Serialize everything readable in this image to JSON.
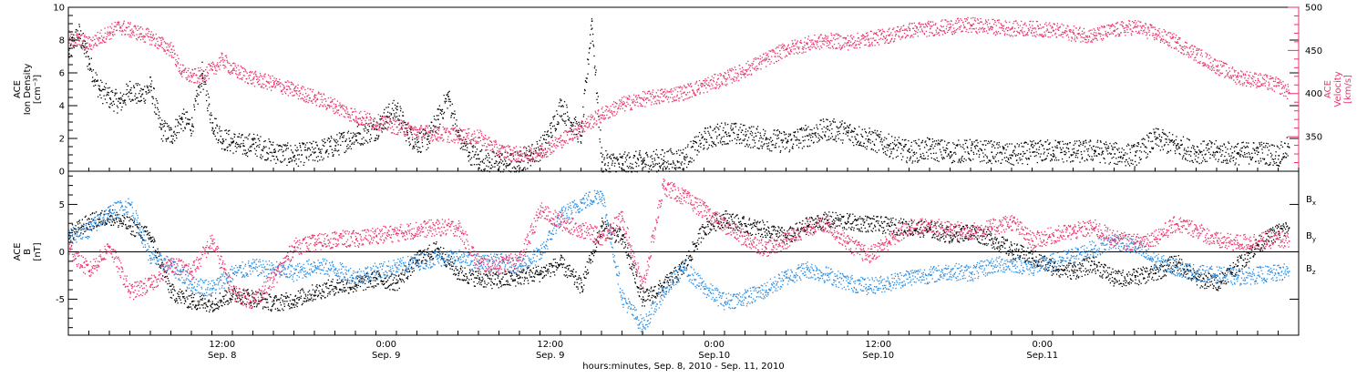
{
  "chart_data": [
    {
      "type": "scatter",
      "panel": "top",
      "left_axis": {
        "label_lines": [
          "ACE",
          "Ion Density",
          "[cm⁻³]"
        ],
        "ylim": [
          0,
          10
        ],
        "ticks": [
          "0",
          "2",
          "4",
          "6",
          "8",
          "10"
        ],
        "color": "#000000"
      },
      "right_axis": {
        "label_lines": [
          "ACE",
          "Velocity",
          "[km/s]"
        ],
        "ylim": [
          310,
          500
        ],
        "ticks": [
          "350",
          "400",
          "450",
          "500"
        ],
        "color": "#e8346a"
      },
      "series": [
        {
          "axis": "left",
          "color": "#000000",
          "x": [
            0,
            0.5,
            1,
            1.5,
            2,
            3,
            4,
            5,
            6,
            7,
            8,
            9,
            10,
            11,
            12,
            13,
            14,
            15,
            16,
            17,
            18,
            20,
            22,
            24,
            26,
            28,
            30,
            31,
            32,
            33,
            34,
            35,
            36,
            37,
            38,
            39,
            40,
            41,
            42,
            43,
            44,
            45,
            46,
            47,
            48,
            49,
            50,
            51,
            52,
            54,
            56,
            58,
            60,
            62,
            64,
            66,
            68,
            70,
            72,
            74,
            76,
            78,
            80,
            82,
            84,
            86,
            88,
            90,
            92,
            94,
            96,
            98,
            100,
            102,
            104,
            106,
            108,
            110,
            112,
            114,
            116,
            118,
            119
          ],
          "y": [
            7.2,
            8.0,
            8.4,
            7.6,
            6.6,
            5.0,
            4.5,
            4.2,
            5.0,
            4.6,
            5.2,
            2.6,
            2.2,
            3.2,
            2.8,
            6.0,
            3.0,
            2.0,
            1.8,
            1.6,
            1.7,
            1.2,
            1.0,
            1.2,
            1.6,
            2.2,
            2.6,
            3.4,
            3.8,
            2.4,
            1.8,
            2.0,
            3.2,
            4.6,
            2.2,
            1.2,
            0.8,
            0.6,
            0.6,
            0.5,
            0.6,
            1.0,
            1.4,
            2.4,
            4.0,
            3.0,
            2.2,
            9.2,
            0.6,
            0.5,
            0.6,
            0.7,
            0.8,
            2.0,
            2.4,
            2.2,
            2.0,
            1.8,
            2.2,
            2.6,
            2.4,
            2.0,
            1.6,
            1.2,
            1.4,
            1.2,
            1.3,
            1.2,
            1.0,
            1.2,
            1.3,
            1.2,
            1.3,
            1.1,
            1.0,
            2.0,
            1.6,
            1.2,
            1.2,
            1.1,
            1.2,
            1.0,
            1.5
          ]
        },
        {
          "axis": "right",
          "color": "#e8346a",
          "x": [
            0,
            1,
            2,
            3,
            4,
            5,
            6,
            7,
            8,
            9,
            10,
            11,
            12,
            13,
            14,
            15,
            16,
            18,
            20,
            22,
            24,
            26,
            28,
            30,
            32,
            34,
            36,
            38,
            40,
            42,
            44,
            46,
            48,
            50,
            52,
            54,
            56,
            58,
            60,
            62,
            64,
            66,
            68,
            70,
            72,
            74,
            76,
            78,
            80,
            82,
            84,
            86,
            88,
            90,
            92,
            94,
            96,
            98,
            100,
            102,
            104,
            106,
            108,
            110,
            112,
            114,
            116,
            118,
            119
          ],
          "y": [
            465,
            462,
            458,
            465,
            472,
            478,
            474,
            470,
            466,
            458,
            452,
            426,
            420,
            422,
            428,
            440,
            428,
            418,
            412,
            404,
            396,
            386,
            374,
            368,
            362,
            356,
            354,
            352,
            350,
            334,
            330,
            332,
            346,
            362,
            376,
            388,
            394,
            398,
            402,
            410,
            418,
            428,
            440,
            452,
            458,
            462,
            460,
            464,
            468,
            474,
            476,
            478,
            480,
            478,
            476,
            476,
            474,
            470,
            468,
            474,
            478,
            470,
            460,
            446,
            432,
            420,
            416,
            410,
            402
          ]
        }
      ]
    },
    {
      "type": "scatter",
      "panel": "bottom",
      "left_axis": {
        "label_lines": [
          "ACE",
          "B",
          "[nT]"
        ],
        "ylim": [
          -8.8,
          8.5
        ],
        "ticks": [
          "-5",
          "0",
          "5"
        ],
        "color": "#000000"
      },
      "legend": [
        {
          "label": "Bx",
          "color": "#000000"
        },
        {
          "label": "By",
          "color": "#2a8ee4"
        },
        {
          "label": "Bz",
          "color": "#e8346a"
        }
      ],
      "series": [
        {
          "name": "Bx",
          "color": "#000000",
          "x": [
            0,
            2,
            4,
            6,
            8,
            10,
            12,
            14,
            16,
            18,
            20,
            22,
            24,
            26,
            28,
            30,
            32,
            34,
            36,
            38,
            40,
            42,
            44,
            46,
            48,
            50,
            52,
            54,
            56,
            58,
            60,
            62,
            64,
            66,
            68,
            70,
            72,
            74,
            76,
            78,
            80,
            82,
            84,
            86,
            88,
            90,
            92,
            94,
            96,
            98,
            100,
            102,
            104,
            106,
            108,
            110,
            112,
            114,
            116,
            118,
            119
          ],
          "y": [
            1.8,
            3.2,
            3.8,
            2.8,
            1.6,
            -4.2,
            -5.2,
            -5.4,
            -4.4,
            -4.8,
            -5.4,
            -5.0,
            -4.2,
            -3.6,
            -3.4,
            -2.8,
            -3.2,
            -0.8,
            0.4,
            -2.2,
            -2.8,
            -3.0,
            -2.6,
            -2.2,
            -1.2,
            -3.6,
            2.8,
            1.4,
            -5.0,
            -3.6,
            -1.6,
            2.6,
            3.6,
            2.8,
            2.4,
            1.6,
            2.8,
            3.4,
            3.2,
            3.0,
            2.8,
            2.6,
            2.4,
            1.8,
            2.2,
            1.4,
            0.2,
            -0.6,
            -1.6,
            -2.0,
            -1.2,
            -2.8,
            -2.6,
            -2.2,
            -1.0,
            -2.8,
            -3.2,
            -1.4,
            0.8,
            2.2,
            2.6
          ]
        },
        {
          "name": "By",
          "color": "#2a8ee4",
          "x": [
            0,
            2,
            4,
            6,
            8,
            10,
            12,
            14,
            16,
            18,
            20,
            22,
            24,
            26,
            28,
            30,
            32,
            34,
            36,
            38,
            40,
            42,
            44,
            46,
            48,
            50,
            52,
            54,
            56,
            58,
            60,
            62,
            64,
            66,
            68,
            70,
            72,
            74,
            76,
            78,
            80,
            82,
            84,
            86,
            88,
            90,
            92,
            94,
            96,
            98,
            100,
            102,
            104,
            106,
            108,
            110,
            112,
            114,
            116,
            118,
            119
          ],
          "y": [
            1.6,
            2.4,
            4.2,
            5.0,
            -0.6,
            -1.4,
            -3.4,
            -3.8,
            -2.2,
            -1.6,
            -1.8,
            -2.2,
            -1.4,
            -1.8,
            -2.6,
            -2.0,
            -1.6,
            -1.0,
            -0.6,
            -0.6,
            -1.2,
            -1.0,
            -1.4,
            -0.2,
            3.8,
            5.2,
            6.2,
            -4.8,
            -7.8,
            -4.2,
            -1.6,
            -3.8,
            -5.2,
            -4.8,
            -4.0,
            -2.6,
            -1.8,
            -2.4,
            -3.2,
            -3.6,
            -3.2,
            -2.6,
            -2.4,
            -2.0,
            -2.2,
            -1.4,
            -1.2,
            -1.6,
            -1.0,
            -0.4,
            0.4,
            1.2,
            0.6,
            -1.0,
            -1.6,
            -2.2,
            -2.4,
            -2.6,
            -2.4,
            -2.2,
            -2.0
          ]
        },
        {
          "name": "Bz",
          "color": "#e8346a",
          "x": [
            0,
            2,
            4,
            6,
            8,
            10,
            12,
            14,
            16,
            18,
            20,
            22,
            24,
            26,
            28,
            30,
            32,
            34,
            36,
            38,
            40,
            42,
            44,
            46,
            48,
            50,
            52,
            54,
            56,
            58,
            60,
            62,
            64,
            66,
            68,
            70,
            72,
            74,
            76,
            78,
            80,
            82,
            84,
            86,
            88,
            90,
            92,
            94,
            96,
            98,
            100,
            102,
            104,
            106,
            108,
            110,
            112,
            114,
            116,
            118,
            119
          ],
          "y": [
            0.4,
            -2.0,
            0.6,
            -4.2,
            -3.4,
            -1.2,
            -2.0,
            1.2,
            -4.2,
            -5.2,
            -2.8,
            0.6,
            1.0,
            1.4,
            1.4,
            1.8,
            2.0,
            2.4,
            2.6,
            2.6,
            -1.2,
            -1.4,
            -0.8,
            4.4,
            3.2,
            2.4,
            1.6,
            3.6,
            -3.8,
            7.0,
            5.8,
            4.4,
            2.8,
            1.4,
            0.4,
            1.2,
            2.6,
            3.0,
            1.0,
            -0.4,
            1.2,
            2.6,
            2.8,
            2.4,
            2.2,
            2.6,
            3.2,
            1.2,
            1.8,
            2.2,
            2.6,
            1.4,
            1.0,
            1.6,
            3.0,
            2.4,
            1.2,
            1.0,
            1.2,
            1.4,
            1.2
          ]
        }
      ]
    }
  ],
  "x_axis": {
    "xlim": [
      0,
      120
    ],
    "major_ticks": [
      {
        "x": 15,
        "time": "12:00",
        "date": "Sep. 8"
      },
      {
        "x": 31,
        "time": "0:00",
        "date": "Sep. 9"
      },
      {
        "x": 47,
        "time": "12:00",
        "date": "Sep. 9"
      },
      {
        "x": 63,
        "time": "0:00",
        "date": "Sep.10"
      },
      {
        "x": 79,
        "time": "12:00",
        "date": "Sep.10"
      },
      {
        "x": 95,
        "time": "0:00",
        "date": "Sep.11"
      }
    ],
    "label": "hours:minutes, Sep.  8, 2010 - Sep. 11, 2010"
  }
}
